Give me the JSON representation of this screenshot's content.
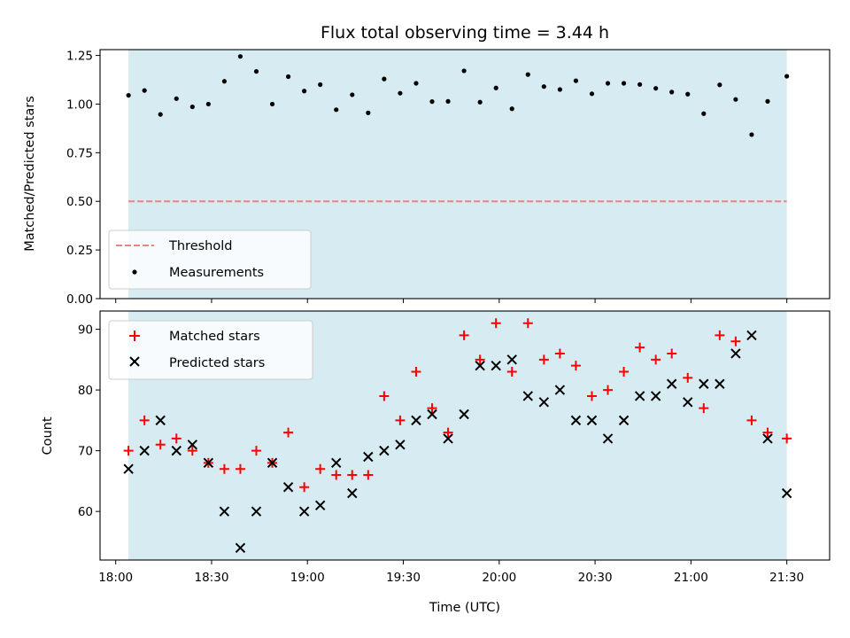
{
  "chart_data": [
    {
      "type": "scatter",
      "title": "Flux total observing time = 3.44 h",
      "ylabel": "Matched/Predicted stars",
      "ylim": [
        0,
        1.28
      ],
      "yticks": [
        0.0,
        0.25,
        0.5,
        0.75,
        1.0,
        1.25
      ],
      "ytick_labels": [
        "0.00",
        "0.25",
        "0.50",
        "0.75",
        "1.00",
        "1.25"
      ],
      "grid": false,
      "legend_placement": "lower-left",
      "shaded_span": {
        "start": "18:04",
        "end": "21:30",
        "color": "#add8e6"
      },
      "threshold": {
        "name": "Threshold",
        "value": 0.5,
        "color": "#f08080",
        "style": "dashed"
      },
      "series": [
        {
          "name": "Measurements",
          "color": "#000000",
          "marker": "dot",
          "x": [
            "18:04",
            "18:09",
            "18:14",
            "18:19",
            "18:24",
            "18:29",
            "18:34",
            "18:39",
            "18:44",
            "18:49",
            "18:54",
            "18:59",
            "19:04",
            "19:09",
            "19:14",
            "19:19",
            "19:24",
            "19:29",
            "19:34",
            "19:39",
            "19:44",
            "19:49",
            "19:54",
            "19:59",
            "20:04",
            "20:09",
            "20:14",
            "20:19",
            "20:24",
            "20:29",
            "20:34",
            "20:39",
            "20:44",
            "20:49",
            "20:54",
            "20:59",
            "21:04",
            "21:09",
            "21:14",
            "21:19",
            "21:24",
            "21:30"
          ],
          "y": [
            1.045,
            1.07,
            0.947,
            1.028,
            0.986,
            1.0,
            1.117,
            1.245,
            1.168,
            1.0,
            1.141,
            1.067,
            1.1,
            0.971,
            1.048,
            0.955,
            1.129,
            1.056,
            1.107,
            1.013,
            1.014,
            1.171,
            1.01,
            1.083,
            0.976,
            1.152,
            1.09,
            1.075,
            1.12,
            1.053,
            1.107,
            1.107,
            1.101,
            1.081,
            1.062,
            1.051,
            0.951,
            1.099,
            1.024,
            0.843,
            1.014,
            1.143
          ]
        }
      ]
    },
    {
      "type": "scatter",
      "xlabel": "Time (UTC)",
      "ylabel": "Count",
      "ylim": [
        52,
        93
      ],
      "yticks": [
        60,
        70,
        80,
        90
      ],
      "ytick_labels": [
        "60",
        "70",
        "80",
        "90"
      ],
      "xticks": [
        "18:00",
        "18:30",
        "19:00",
        "19:30",
        "20:00",
        "20:30",
        "21:00",
        "21:30"
      ],
      "grid": false,
      "legend_placement": "upper-left",
      "shaded_span": {
        "start": "18:04",
        "end": "21:30",
        "color": "#add8e6"
      },
      "series": [
        {
          "name": "Matched stars",
          "color": "#ff0000",
          "marker": "plus",
          "x": [
            "18:04",
            "18:09",
            "18:14",
            "18:19",
            "18:24",
            "18:29",
            "18:34",
            "18:39",
            "18:44",
            "18:49",
            "18:54",
            "18:59",
            "19:04",
            "19:09",
            "19:14",
            "19:19",
            "19:24",
            "19:29",
            "19:34",
            "19:39",
            "19:44",
            "19:49",
            "19:54",
            "19:59",
            "20:04",
            "20:09",
            "20:14",
            "20:19",
            "20:24",
            "20:29",
            "20:34",
            "20:39",
            "20:44",
            "20:49",
            "20:54",
            "20:59",
            "21:04",
            "21:09",
            "21:14",
            "21:19",
            "21:24",
            "21:30"
          ],
          "y": [
            70,
            75,
            71,
            72,
            70,
            68,
            67,
            67,
            70,
            68,
            73,
            64,
            67,
            66,
            66,
            66,
            79,
            75,
            83,
            77,
            73,
            89,
            85,
            91,
            83,
            91,
            85,
            86,
            84,
            79,
            80,
            83,
            87,
            85,
            86,
            82,
            77,
            89,
            88,
            75,
            73,
            72
          ]
        },
        {
          "name": "Predicted stars",
          "color": "#000000",
          "marker": "x",
          "x": [
            "18:04",
            "18:09",
            "18:14",
            "18:19",
            "18:24",
            "18:29",
            "18:34",
            "18:39",
            "18:44",
            "18:49",
            "18:54",
            "18:59",
            "19:04",
            "19:09",
            "19:14",
            "19:19",
            "19:24",
            "19:29",
            "19:34",
            "19:39",
            "19:44",
            "19:49",
            "19:54",
            "19:59",
            "20:04",
            "20:09",
            "20:14",
            "20:19",
            "20:24",
            "20:29",
            "20:34",
            "20:39",
            "20:44",
            "20:49",
            "20:54",
            "20:59",
            "21:04",
            "21:09",
            "21:14",
            "21:19",
            "21:24",
            "21:30"
          ],
          "y": [
            67,
            70,
            75,
            70,
            71,
            68,
            60,
            54,
            60,
            68,
            64,
            60,
            61,
            68,
            63,
            69,
            70,
            71,
            75,
            76,
            72,
            76,
            84,
            84,
            85,
            79,
            78,
            80,
            75,
            75,
            72,
            75,
            79,
            79,
            81,
            78,
            81,
            81,
            86,
            89,
            72,
            63
          ]
        }
      ]
    }
  ]
}
